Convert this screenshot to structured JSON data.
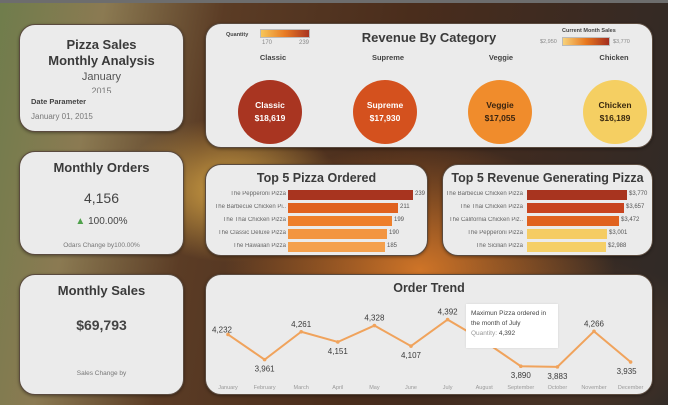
{
  "title_card": {
    "title_line1": "Pizza Sales",
    "title_line2": "Monthly Analysis",
    "month": "January",
    "year": "2015",
    "date_parameter_label": "Date Parameter",
    "date_parameter_value": "January 01, 2015"
  },
  "monthly_orders": {
    "title": "Monthly Orders",
    "value": "4,156",
    "change_icon": "triangle-up-icon",
    "change": "100.00%",
    "note": "Odars Change by100.00%",
    "change_color": "#4fa14b"
  },
  "monthly_sales": {
    "title": "Monthly Sales",
    "value": "$69,793",
    "note": "Sales Change by"
  },
  "revenue_by_category": {
    "title": "Revenue By Category",
    "legend_quantity": {
      "label": "Quantity",
      "min": "170",
      "max": "239"
    },
    "legend_sales": {
      "label": "Current Month Sales",
      "min": "$2,950",
      "max": "$3,770"
    },
    "categories": [
      {
        "header": "Classic",
        "label": "Classic",
        "value": "$18,619",
        "color": "#a93521",
        "text_color": "#ffffff"
      },
      {
        "header": "Supreme",
        "label": "Supreme",
        "value": "$17,930",
        "color": "#d4511e",
        "text_color": "#ffffff"
      },
      {
        "header": "Veggie",
        "label": "Veggie",
        "value": "$17,055",
        "color": "#f08c2c",
        "text_color": "#3a2410"
      },
      {
        "header": "Chicken",
        "label": "Chicken",
        "value": "$16,189",
        "color": "#f5cf62",
        "text_color": "#3a2a10"
      }
    ]
  },
  "top5_ordered": {
    "title": "Top 5 Pizza Ordered"
  },
  "top5_revenue": {
    "title": "Top 5 Revenue Generating Pizza"
  },
  "order_trend": {
    "title": "Order Trend",
    "tooltip_line1": "Maximun Pizza ordered in",
    "tooltip_line2": "the month of July",
    "tooltip_key": "Quantity:",
    "tooltip_value": "4,392",
    "line_color": "#f0a35c"
  },
  "chart_data": [
    {
      "type": "bar",
      "title": "Top 5 Pizza Ordered",
      "orientation": "horizontal",
      "categories": [
        "The Pepperoni Pizza",
        "The Barbecue Chicken Pi..",
        "The Thai Chicken Pizza",
        "The Classic Deluxe Pizza",
        "The Hawaiian Pizza"
      ],
      "values": [
        239,
        211,
        199,
        190,
        185
      ],
      "labels": [
        "239",
        "211",
        "199",
        "190",
        "185"
      ],
      "colors": [
        "#a8341f",
        "#e0621f",
        "#ee7f2b",
        "#f39540",
        "#f4a04c"
      ]
    },
    {
      "type": "bar",
      "title": "Top 5 Revenue Generating Pizza",
      "orientation": "horizontal",
      "categories": [
        "The Barbecue Chicken Pizza",
        "The Thai Chicken Pizza",
        "The California Chicken Piz..",
        "The Pepperoni Pizza",
        "The Sicilian Pizza"
      ],
      "values": [
        3770,
        3657,
        3472,
        3001,
        2988
      ],
      "labels": [
        "$3,770",
        "$3,657",
        "$3,472",
        "$3,001",
        "$2,988"
      ],
      "colors": [
        "#a8341f",
        "#c8441f",
        "#e0621f",
        "#f5cc63",
        "#f5cf66"
      ]
    },
    {
      "type": "line",
      "title": "Order Trend",
      "x": [
        "January",
        "February",
        "March",
        "April",
        "May",
        "June",
        "July",
        "August",
        "September",
        "October",
        "November",
        "December"
      ],
      "values": [
        4232,
        3961,
        4261,
        4151,
        4328,
        4107,
        4392,
        4160,
        3890,
        3883,
        4266,
        3935
      ],
      "labels": [
        "4,232",
        "3,961",
        "4,261",
        "4,151",
        "4,328",
        "4,107",
        "4,392",
        "",
        "3,890",
        "3,883",
        "4,266",
        "3,935"
      ],
      "ylim": [
        3800,
        4450
      ],
      "grid": false
    },
    {
      "type": "bar",
      "title": "Revenue By Category",
      "categories": [
        "Classic",
        "Supreme",
        "Veggie",
        "Chicken"
      ],
      "values": [
        18619,
        17930,
        17055,
        16189
      ]
    }
  ]
}
